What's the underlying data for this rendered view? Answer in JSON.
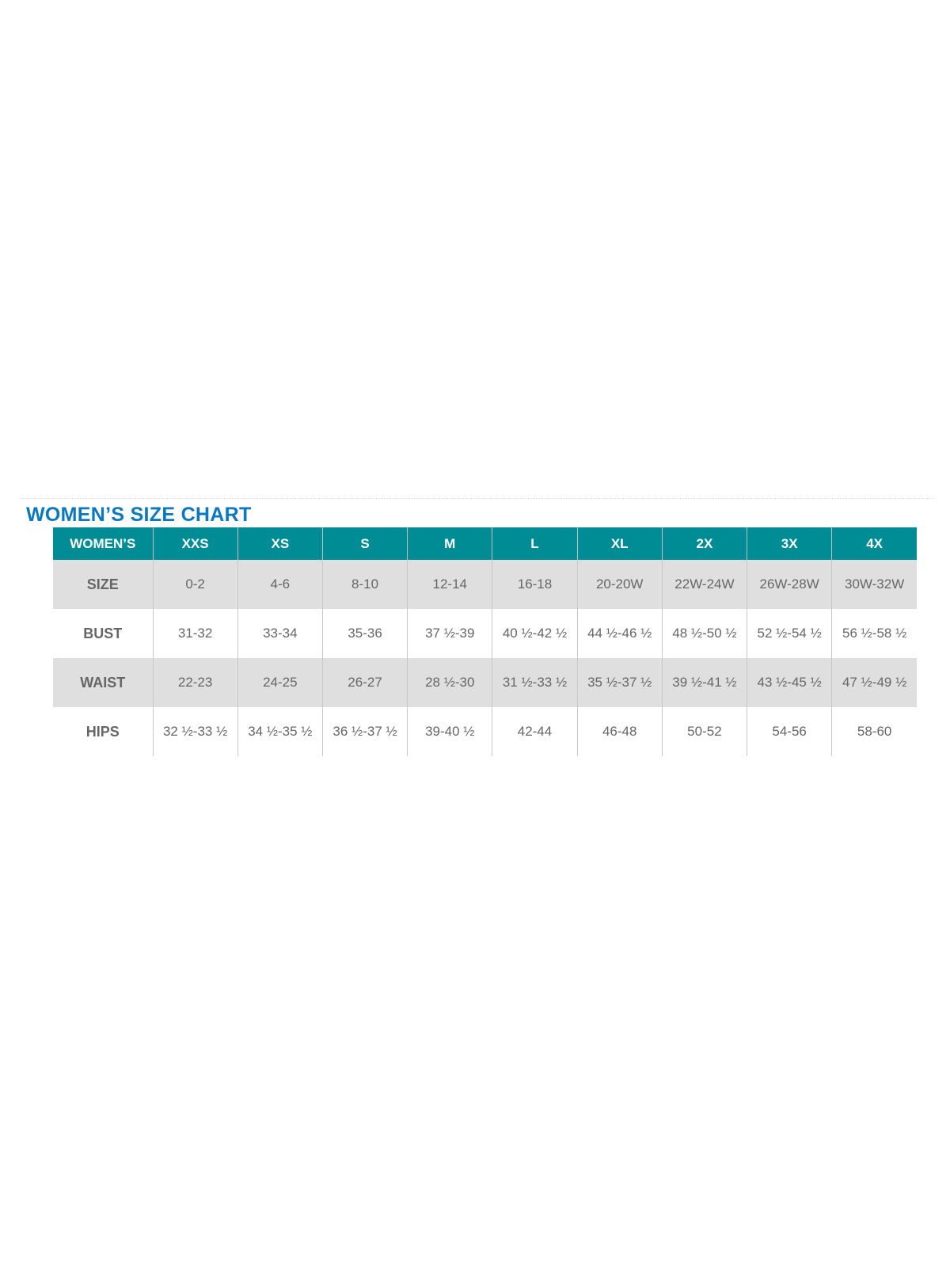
{
  "title": "WOMEN’S SIZE CHART",
  "colors": {
    "header_bg": "#008c95",
    "title": "#0a78bf",
    "shade_row": "#e0dfe0"
  },
  "table": {
    "headers": [
      "WOMEN’S",
      "XXS",
      "XS",
      "S",
      "M",
      "L",
      "XL",
      "2X",
      "3X",
      "4X"
    ],
    "rows": [
      {
        "label": "SIZE",
        "cells": [
          "0-2",
          "4-6",
          "8-10",
          "12-14",
          "16-18",
          "20-20W",
          "22W-24W",
          "26W-28W",
          "30W-32W"
        ]
      },
      {
        "label": "BUST",
        "cells": [
          "31-32",
          "33-34",
          "35-36",
          "37 ½-39",
          "40 ½-42 ½",
          "44 ½-46 ½",
          "48 ½-50 ½",
          "52 ½-54 ½",
          "56 ½-58 ½"
        ]
      },
      {
        "label": "WAIST",
        "cells": [
          "22-23",
          "24-25",
          "26-27",
          "28 ½-30",
          "31 ½-33 ½",
          "35 ½-37 ½",
          "39 ½-41 ½",
          "43 ½-45 ½",
          "47 ½-49 ½"
        ]
      },
      {
        "label": "HIPS",
        "cells": [
          "32 ½-33 ½",
          "34 ½-35 ½",
          "36 ½-37 ½",
          "39-40 ½",
          "42-44",
          "46-48",
          "50-52",
          "54-56",
          "58-60"
        ]
      }
    ]
  }
}
